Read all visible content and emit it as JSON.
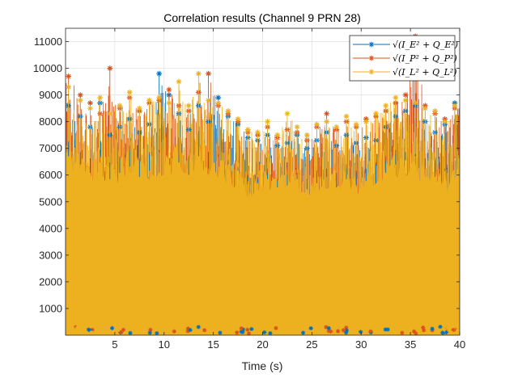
{
  "chart_data": {
    "type": "line",
    "title": "Correlation results (Channel 9 PRN 28)",
    "xlabel": "Time (s)",
    "ylabel": "",
    "xlim": [
      0,
      40
    ],
    "ylim": [
      0,
      11500
    ],
    "xticks": [
      5,
      10,
      15,
      20,
      25,
      30,
      35,
      40
    ],
    "xtick_labels": [
      "5",
      "10",
      "15",
      "20",
      "25",
      "30",
      "35",
      "40"
    ],
    "yticks": [
      1000,
      2000,
      3000,
      4000,
      5000,
      6000,
      7000,
      8000,
      9000,
      10000,
      11000
    ],
    "ytick_labels": [
      "1000",
      "2000",
      "3000",
      "4000",
      "5000",
      "6000",
      "7000",
      "8000",
      "9000",
      "10000",
      "11000"
    ],
    "grid": true,
    "legend_position": "top-right",
    "marker": "asterisk",
    "series": [
      {
        "name": "sqrt(I_E^2 + Q_E^2)",
        "legend_label": "√(I_E² + Q_E²)",
        "color": "#0072BD",
        "x": [
          0.3,
          1.5,
          2.5,
          3.5,
          4.5,
          5.5,
          6.5,
          7.5,
          8.5,
          9.5,
          10.5,
          11.5,
          12.5,
          13.5,
          14.5,
          15.5,
          16.5,
          17.5,
          18.5,
          19.5,
          20.5,
          21.5,
          22.5,
          23.5,
          24.5,
          25.5,
          26.5,
          27.5,
          28.5,
          29.5,
          30.5,
          31.5,
          32.5,
          33.5,
          34.5,
          35.5,
          36.5,
          37.5,
          38.5,
          39.5
        ],
        "y": [
          8600,
          8200,
          7800,
          8700,
          7500,
          7800,
          8100,
          7600,
          7900,
          9800,
          9000,
          8300,
          7700,
          8600,
          8000,
          8900,
          8200,
          7900,
          7400,
          7300,
          7500,
          7100,
          7200,
          7500,
          7000,
          7300,
          7600,
          7100,
          7500,
          7200,
          7400,
          7300,
          7800,
          8200,
          8400,
          8600,
          8000,
          7600,
          7900,
          8700
        ]
      },
      {
        "name": "sqrt(I_P^2 + Q_P^2)",
        "legend_label": "√(I_P² + Q_P²)",
        "color": "#D95319",
        "x": [
          0.3,
          1.5,
          2.5,
          3.5,
          4.5,
          5.5,
          6.5,
          7.5,
          8.5,
          9.5,
          10.5,
          11.5,
          12.5,
          13.5,
          14.5,
          15.5,
          16.5,
          17.5,
          18.5,
          19.5,
          20.5,
          21.5,
          22.5,
          23.5,
          24.5,
          25.5,
          26.5,
          27.5,
          28.5,
          29.5,
          30.5,
          31.5,
          32.5,
          33.5,
          34.5,
          35.5,
          36.5,
          37.5,
          38.5,
          39.5
        ],
        "y": [
          9700,
          9000,
          8700,
          8300,
          10000,
          8500,
          8900,
          8400,
          8700,
          8800,
          9200,
          8600,
          8400,
          9100,
          9800,
          8600,
          8300,
          8000,
          7600,
          7500,
          7800,
          7400,
          7700,
          7600,
          7300,
          7800,
          8300,
          7700,
          8000,
          7800,
          8100,
          8200,
          8400,
          8700,
          9000,
          11200,
          8600,
          8300,
          8100,
          8500
        ]
      },
      {
        "name": "sqrt(I_L^2 + Q_L^2)",
        "legend_label": "√(I_L² + Q_L²)",
        "color": "#EDB120",
        "x": [
          0.3,
          1.5,
          2.5,
          3.5,
          4.5,
          5.5,
          6.5,
          7.5,
          8.5,
          9.5,
          10.5,
          11.5,
          12.5,
          13.5,
          14.5,
          15.5,
          16.5,
          17.5,
          18.5,
          19.5,
          20.5,
          21.5,
          22.5,
          23.5,
          24.5,
          25.5,
          26.5,
          27.5,
          28.5,
          29.5,
          30.5,
          31.5,
          32.5,
          33.5,
          34.5,
          35.5,
          36.5,
          37.5,
          38.5,
          39.5
        ],
        "y": [
          9300,
          8800,
          8500,
          8900,
          8300,
          8600,
          9100,
          8500,
          8800,
          8900,
          8700,
          9500,
          8600,
          9800,
          8800,
          8700,
          8400,
          8100,
          7700,
          7600,
          8000,
          7500,
          8300,
          7800,
          7500,
          7900,
          8000,
          7800,
          8200,
          7900,
          8000,
          8300,
          8600,
          8900,
          8800,
          8700,
          8500,
          8400,
          8000,
          8600
        ]
      }
    ]
  },
  "colors": {
    "axis": "#262626",
    "grid": "#dfdfdf",
    "fill": "#EDB120"
  }
}
